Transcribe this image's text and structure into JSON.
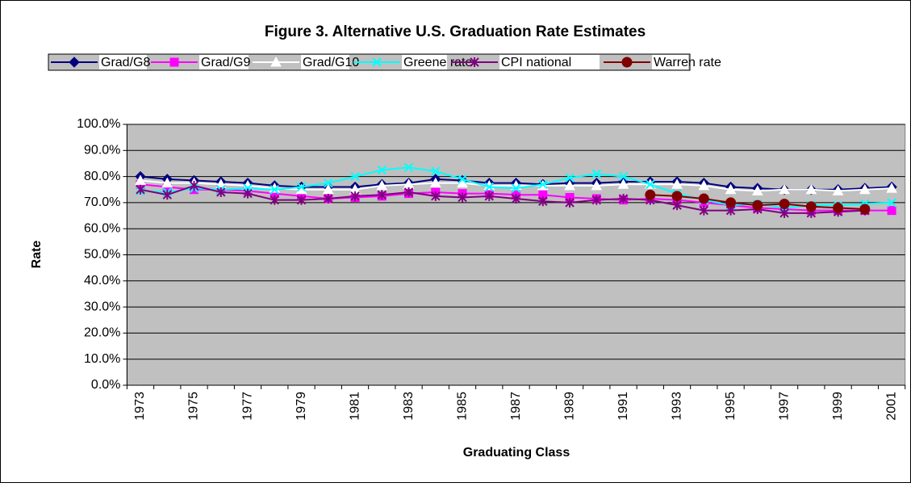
{
  "chart_data": {
    "type": "line",
    "title": "Figure 3. Alternative U.S. Graduation Rate Estimates",
    "x_label": "Graduating Class",
    "y_label": "Rate",
    "categories": [
      "1973",
      null,
      "1975",
      null,
      "1977",
      null,
      "1979",
      null,
      "1981",
      null,
      "1983",
      null,
      "1985",
      null,
      "1987",
      null,
      "1989",
      null,
      "1991",
      null,
      "1993",
      null,
      "1995",
      null,
      "1997",
      null,
      "1999",
      null,
      "2001"
    ],
    "series": [
      {
        "name": "Grad/G8",
        "color": "#000080",
        "marker": "diamond",
        "values": [
          80,
          79,
          78.5,
          78,
          77.5,
          76.5,
          76,
          76,
          76,
          77,
          77.5,
          79,
          78.5,
          77.5,
          77.5,
          77,
          77.5,
          77.5,
          78,
          78,
          78,
          77.5,
          76,
          75.5,
          75,
          75,
          75,
          75.5,
          76
        ]
      },
      {
        "name": "Grad/G9",
        "color": "#ff00ff",
        "marker": "square",
        "values": [
          77,
          76,
          75,
          75,
          74.5,
          73.5,
          72.5,
          71.5,
          72,
          72.5,
          73.5,
          74,
          73.5,
          73.5,
          73,
          73,
          72,
          71.5,
          71,
          71.5,
          71,
          70,
          69,
          68,
          67.5,
          67,
          67,
          67,
          67
        ]
      },
      {
        "name": "Grad/G10",
        "color": "#ffffff",
        "marker": "triangle",
        "values": [
          78.5,
          77.5,
          77.5,
          77,
          76.5,
          75.5,
          75,
          75,
          75,
          76.5,
          77,
          77.5,
          77.5,
          76.5,
          76.5,
          76.5,
          76.5,
          76.5,
          77,
          77,
          77,
          76.5,
          75,
          74.5,
          75,
          75,
          74.5,
          75,
          75.5
        ]
      },
      {
        "name": "Greene rate",
        "color": "#00ffff",
        "marker": "x",
        "values": [
          74.5,
          74,
          75.5,
          75,
          75.5,
          75,
          76,
          77.5,
          80,
          82.5,
          83.5,
          82,
          79,
          76,
          75.5,
          77,
          79.5,
          81,
          80,
          77,
          73.5,
          71,
          69,
          69.5,
          68,
          69,
          69,
          69.5,
          70
        ]
      },
      {
        "name": "CPI national",
        "color": "#800080",
        "marker": "asterisk",
        "values": [
          75,
          73,
          76.5,
          74,
          73.5,
          71,
          71,
          71.5,
          72.5,
          73,
          74,
          72.5,
          72,
          72.5,
          71.5,
          70.5,
          70,
          71,
          71.5,
          71,
          69,
          67,
          67,
          67.5,
          66,
          66,
          66.5,
          67,
          null
        ]
      },
      {
        "name": "Warren rate",
        "color": "#800000",
        "marker": "circle",
        "values": [
          null,
          null,
          null,
          null,
          null,
          null,
          null,
          null,
          null,
          null,
          null,
          null,
          null,
          null,
          null,
          null,
          null,
          null,
          null,
          73,
          72.5,
          71.5,
          70,
          69,
          69.5,
          68.5,
          68,
          67.5,
          null
        ]
      }
    ],
    "ylim": [
      0,
      100
    ],
    "yticks": [
      {
        "value": 0,
        "label": "0.0%"
      },
      {
        "value": 10,
        "label": "10.0%"
      },
      {
        "value": 20,
        "label": "20.0%"
      },
      {
        "value": 30,
        "label": "30.0%"
      },
      {
        "value": 40,
        "label": "40.0%"
      },
      {
        "value": 50,
        "label": "50.0%"
      },
      {
        "value": 60,
        "label": "60.0%"
      },
      {
        "value": 70,
        "label": "70.0%"
      },
      {
        "value": 80,
        "label": "80.0%"
      },
      {
        "value": 90,
        "label": "90.0%"
      },
      {
        "value": 100,
        "label": "100.0%"
      }
    ],
    "grid": true,
    "legend": "top",
    "plot_background": "#c0c0c0"
  }
}
